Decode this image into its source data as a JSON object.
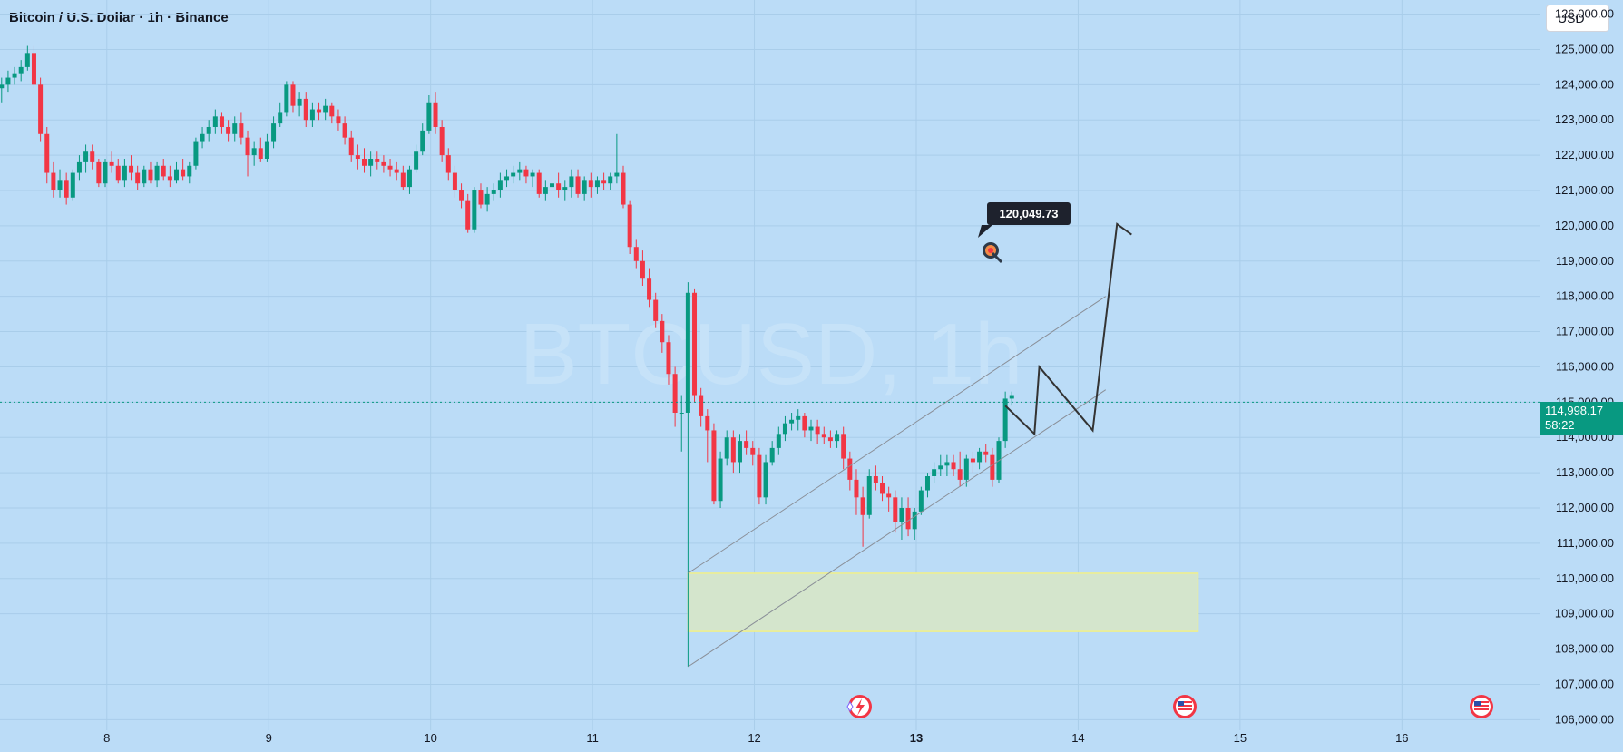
{
  "header": {
    "title": "Bitcoin / U.S. Dollar · 1h · Binance",
    "currency": "USD"
  },
  "watermark": "BTCUSD, 1h",
  "price_tag": {
    "price": "114,998.17",
    "countdown": "58:22"
  },
  "target_label": "120,049.73",
  "colors": {
    "background": "#bbdcf7",
    "up": "#089981",
    "down": "#f23645",
    "tag": "#089981",
    "zone_fill": "#d4e5cc",
    "zone_border": "#f0f08a",
    "path": "#333333"
  },
  "icons": [
    "target-icon",
    "lightning-event-icon",
    "us-flag-event-icon",
    "us-flag-event-icon"
  ],
  "chart_data": {
    "type": "candlestick",
    "y_ticks": [
      "126,000.00",
      "125,000.00",
      "124,000.00",
      "123,000.00",
      "122,000.00",
      "121,000.00",
      "120,000.00",
      "119,000.00",
      "118,000.00",
      "117,000.00",
      "116,000.00",
      "115,000.00",
      "114,000.00",
      "113,000.00",
      "112,000.00",
      "111,000.00",
      "110,000.00",
      "109,000.00",
      "108,000.00",
      "107,000.00",
      "106,000.00"
    ],
    "y_range": [
      105700,
      126400
    ],
    "x_ticks": [
      {
        "label": "8",
        "day": 8
      },
      {
        "label": "9",
        "day": 9
      },
      {
        "label": "10",
        "day": 10
      },
      {
        "label": "11",
        "day": 11
      },
      {
        "label": "12",
        "day": 12
      },
      {
        "label": "13",
        "day": 13
      },
      {
        "label": "14",
        "day": 14
      },
      {
        "label": "15",
        "day": 15
      },
      {
        "label": "16",
        "day": 16
      }
    ],
    "x_range_days": [
      7.34,
      16.85
    ],
    "candles": [
      [
        7.35,
        123900,
        124200,
        123500,
        124000
      ],
      [
        7.39,
        124000,
        124400,
        123800,
        124200
      ],
      [
        7.43,
        124200,
        124500,
        124000,
        124300
      ],
      [
        7.47,
        124300,
        124700,
        124100,
        124500
      ],
      [
        7.51,
        124500,
        125100,
        124400,
        124900
      ],
      [
        7.55,
        124900,
        125100,
        123900,
        124000
      ],
      [
        7.59,
        124000,
        124200,
        122400,
        122600
      ],
      [
        7.63,
        122600,
        122800,
        121200,
        121500
      ],
      [
        7.67,
        121500,
        121800,
        120800,
        121000
      ],
      [
        7.71,
        121000,
        121600,
        120800,
        121300
      ],
      [
        7.75,
        121300,
        121500,
        120600,
        120800
      ],
      [
        7.79,
        120800,
        121600,
        120700,
        121500
      ],
      [
        7.83,
        121500,
        122000,
        121300,
        121800
      ],
      [
        7.87,
        121800,
        122300,
        121500,
        122100
      ],
      [
        7.91,
        122100,
        122300,
        121600,
        121800
      ],
      [
        7.95,
        121800,
        121900,
        121100,
        121200
      ],
      [
        7.99,
        121200,
        121900,
        121100,
        121800
      ],
      [
        8.03,
        121800,
        122100,
        121500,
        121700
      ],
      [
        8.07,
        121700,
        121900,
        121200,
        121300
      ],
      [
        8.11,
        121300,
        121900,
        121100,
        121700
      ],
      [
        8.15,
        121700,
        122000,
        121300,
        121500
      ],
      [
        8.19,
        121500,
        121700,
        121000,
        121200
      ],
      [
        8.23,
        121200,
        121700,
        121100,
        121600
      ],
      [
        8.27,
        121600,
        121800,
        121200,
        121300
      ],
      [
        8.31,
        121300,
        121800,
        121100,
        121700
      ],
      [
        8.35,
        121700,
        121900,
        121300,
        121400
      ],
      [
        8.39,
        121400,
        121700,
        121100,
        121300
      ],
      [
        8.43,
        121300,
        121800,
        121200,
        121600
      ],
      [
        8.47,
        121600,
        121900,
        121300,
        121400
      ],
      [
        8.51,
        121400,
        121800,
        121200,
        121700
      ],
      [
        8.55,
        121700,
        122500,
        121600,
        122400
      ],
      [
        8.59,
        122400,
        122800,
        122200,
        122600
      ],
      [
        8.63,
        122600,
        123000,
        122400,
        122800
      ],
      [
        8.67,
        122800,
        123300,
        122600,
        123100
      ],
      [
        8.71,
        123100,
        123200,
        122600,
        122800
      ],
      [
        8.75,
        122800,
        123000,
        122400,
        122600
      ],
      [
        8.79,
        122600,
        123100,
        122400,
        122900
      ],
      [
        8.83,
        122900,
        123200,
        122300,
        122500
      ],
      [
        8.87,
        122500,
        122700,
        121400,
        122000
      ],
      [
        8.91,
        122000,
        122400,
        121700,
        122200
      ],
      [
        8.95,
        122200,
        122500,
        121800,
        121900
      ],
      [
        8.99,
        121900,
        122600,
        121800,
        122400
      ],
      [
        9.03,
        122400,
        123100,
        122200,
        122900
      ],
      [
        9.07,
        122900,
        123500,
        122800,
        123200
      ],
      [
        9.11,
        123200,
        124100,
        123100,
        124000
      ],
      [
        9.15,
        124000,
        124100,
        123200,
        123400
      ],
      [
        9.19,
        123400,
        123800,
        123100,
        123600
      ],
      [
        9.23,
        123600,
        123800,
        122800,
        123000
      ],
      [
        9.27,
        123000,
        123500,
        122800,
        123300
      ],
      [
        9.31,
        123300,
        123500,
        123000,
        123200
      ],
      [
        9.35,
        123200,
        123600,
        123000,
        123400
      ],
      [
        9.39,
        123400,
        123500,
        122900,
        123100
      ],
      [
        9.43,
        123100,
        123300,
        122700,
        122900
      ],
      [
        9.47,
        122900,
        123100,
        122300,
        122500
      ],
      [
        9.51,
        122500,
        122700,
        121800,
        122000
      ],
      [
        9.55,
        122000,
        122300,
        121600,
        121900
      ],
      [
        9.59,
        121900,
        122200,
        121500,
        121700
      ],
      [
        9.63,
        121700,
        122100,
        121400,
        121900
      ],
      [
        9.67,
        121900,
        122100,
        121600,
        121800
      ],
      [
        9.71,
        121800,
        122000,
        121500,
        121700
      ],
      [
        9.75,
        121700,
        121900,
        121400,
        121600
      ],
      [
        9.79,
        121600,
        121800,
        121300,
        121500
      ],
      [
        9.83,
        121500,
        121700,
        121000,
        121100
      ],
      [
        9.87,
        121100,
        121700,
        120900,
        121600
      ],
      [
        9.91,
        121600,
        122300,
        121500,
        122100
      ],
      [
        9.95,
        122100,
        122900,
        122000,
        122700
      ],
      [
        9.99,
        122700,
        123700,
        122600,
        123500
      ],
      [
        10.03,
        123500,
        123800,
        122600,
        122800
      ],
      [
        10.07,
        122800,
        123000,
        121800,
        122000
      ],
      [
        10.11,
        122000,
        122200,
        121300,
        121500
      ],
      [
        10.15,
        121500,
        121700,
        120800,
        121000
      ],
      [
        10.19,
        121000,
        121200,
        120500,
        120700
      ],
      [
        10.23,
        120700,
        120900,
        119800,
        119900
      ],
      [
        10.27,
        119900,
        121100,
        119800,
        121000
      ],
      [
        10.31,
        121000,
        121200,
        120500,
        120600
      ],
      [
        10.35,
        120600,
        121100,
        120400,
        120900
      ],
      [
        10.39,
        120900,
        121200,
        120700,
        121000
      ],
      [
        10.43,
        121000,
        121500,
        120800,
        121300
      ],
      [
        10.47,
        121300,
        121600,
        121100,
        121400
      ],
      [
        10.51,
        121400,
        121700,
        121200,
        121500
      ],
      [
        10.55,
        121500,
        121800,
        121300,
        121600
      ],
      [
        10.59,
        121600,
        121700,
        121200,
        121400
      ],
      [
        10.63,
        121400,
        121600,
        121100,
        121500
      ],
      [
        10.67,
        121500,
        121600,
        120800,
        120900
      ],
      [
        10.71,
        120900,
        121300,
        120700,
        121100
      ],
      [
        10.75,
        121100,
        121400,
        120900,
        121200
      ],
      [
        10.79,
        121200,
        121500,
        120800,
        121000
      ],
      [
        10.83,
        121000,
        121300,
        120700,
        121100
      ],
      [
        10.87,
        121100,
        121600,
        120800,
        121400
      ],
      [
        10.91,
        121400,
        121600,
        120800,
        120900
      ],
      [
        10.95,
        120900,
        121400,
        120700,
        121300
      ],
      [
        10.99,
        121300,
        121500,
        120800,
        121100
      ],
      [
        11.03,
        121100,
        121400,
        120900,
        121300
      ],
      [
        11.07,
        121300,
        121500,
        121000,
        121200
      ],
      [
        11.11,
        121200,
        121500,
        121000,
        121400
      ],
      [
        11.15,
        121400,
        122600,
        121200,
        121500
      ],
      [
        11.19,
        121500,
        121700,
        120500,
        120600
      ],
      [
        11.23,
        120600,
        120700,
        119200,
        119400
      ],
      [
        11.27,
        119400,
        119600,
        118800,
        119000
      ],
      [
        11.31,
        119000,
        119300,
        118300,
        118500
      ],
      [
        11.35,
        118500,
        118800,
        117700,
        117900
      ],
      [
        11.39,
        117900,
        118100,
        117100,
        117300
      ],
      [
        11.43,
        117300,
        117500,
        116400,
        116700
      ],
      [
        11.47,
        116700,
        116900,
        115500,
        115800
      ],
      [
        11.51,
        115800,
        116000,
        114300,
        114700
      ],
      [
        11.55,
        114700,
        115200,
        113600,
        114700
      ],
      [
        11.59,
        114700,
        118400,
        107500,
        118100
      ],
      [
        11.63,
        118100,
        118200,
        115000,
        115200
      ],
      [
        11.67,
        115200,
        115400,
        114300,
        114600
      ],
      [
        11.71,
        114600,
        114800,
        113300,
        114200
      ],
      [
        11.75,
        114200,
        114400,
        112100,
        112200
      ],
      [
        11.79,
        112200,
        113600,
        112000,
        113400
      ],
      [
        11.83,
        113400,
        114200,
        113200,
        114000
      ],
      [
        11.87,
        114000,
        114200,
        113000,
        113300
      ],
      [
        11.91,
        113300,
        114100,
        113000,
        113900
      ],
      [
        11.95,
        113900,
        114200,
        113500,
        113700
      ],
      [
        11.99,
        113700,
        113900,
        113200,
        113500
      ],
      [
        12.03,
        113500,
        113700,
        112100,
        112300
      ],
      [
        12.07,
        112300,
        113500,
        112100,
        113300
      ],
      [
        12.11,
        113300,
        113900,
        113200,
        113700
      ],
      [
        12.15,
        113700,
        114300,
        113500,
        114100
      ],
      [
        12.19,
        114100,
        114600,
        113900,
        114400
      ],
      [
        12.23,
        114400,
        114700,
        114200,
        114500
      ],
      [
        12.27,
        114500,
        114800,
        114200,
        114600
      ],
      [
        12.31,
        114600,
        114700,
        114000,
        114200
      ],
      [
        12.35,
        114200,
        114500,
        113900,
        114300
      ],
      [
        12.39,
        114300,
        114500,
        113800,
        114100
      ],
      [
        12.43,
        114100,
        114300,
        113800,
        114000
      ],
      [
        12.47,
        114000,
        114200,
        113700,
        113900
      ],
      [
        12.51,
        113900,
        114200,
        113700,
        114100
      ],
      [
        12.55,
        114100,
        114300,
        113100,
        113400
      ],
      [
        12.59,
        113400,
        113600,
        112500,
        112800
      ],
      [
        12.63,
        112800,
        113100,
        111800,
        112300
      ],
      [
        12.67,
        112300,
        112600,
        110900,
        111800
      ],
      [
        12.71,
        111800,
        113100,
        111700,
        112900
      ],
      [
        12.75,
        112900,
        113200,
        112500,
        112700
      ],
      [
        12.79,
        112700,
        112900,
        112200,
        112400
      ],
      [
        12.83,
        112400,
        112600,
        111900,
        112300
      ],
      [
        12.87,
        112300,
        112500,
        111300,
        111600
      ],
      [
        12.91,
        111600,
        112300,
        111100,
        112000
      ],
      [
        12.95,
        112000,
        112300,
        111200,
        111400
      ],
      [
        12.99,
        111400,
        112000,
        111100,
        111900
      ],
      [
        13.03,
        111900,
        112600,
        111800,
        112500
      ],
      [
        13.07,
        112500,
        113000,
        112300,
        112900
      ],
      [
        13.11,
        112900,
        113300,
        112700,
        113100
      ],
      [
        13.15,
        113100,
        113500,
        112900,
        113200
      ],
      [
        13.19,
        113200,
        113500,
        112900,
        113300
      ],
      [
        13.23,
        113300,
        113500,
        112900,
        113100
      ],
      [
        13.27,
        113100,
        113600,
        112600,
        112800
      ],
      [
        13.31,
        112800,
        113500,
        112600,
        113400
      ],
      [
        13.35,
        113400,
        113600,
        113000,
        113300
      ],
      [
        13.39,
        113300,
        113700,
        113100,
        113600
      ],
      [
        13.43,
        113600,
        113800,
        113300,
        113500
      ],
      [
        13.47,
        113500,
        113700,
        112600,
        112800
      ],
      [
        13.51,
        112800,
        114000,
        112700,
        113900
      ],
      [
        13.55,
        113900,
        115300,
        113700,
        115100
      ],
      [
        13.59,
        115100,
        115300,
        114900,
        115200
      ]
    ],
    "current_price": 114998.17,
    "zone": {
      "x_days": [
        11.59,
        14.74
      ],
      "price": [
        108500,
        110150
      ]
    },
    "channel_lines": [
      {
        "from": [
          11.59,
          110150
        ],
        "to": [
          14.17,
          118000
        ]
      },
      {
        "from": [
          11.59,
          107500
        ],
        "to": [
          14.17,
          115350
        ]
      }
    ],
    "projection_path": [
      [
        13.55,
        114900
      ],
      [
        13.73,
        114100
      ],
      [
        13.76,
        116000
      ],
      [
        14.09,
        114200
      ],
      [
        14.24,
        120050
      ],
      [
        14.33,
        119750
      ]
    ],
    "target_price": 120049.73
  }
}
